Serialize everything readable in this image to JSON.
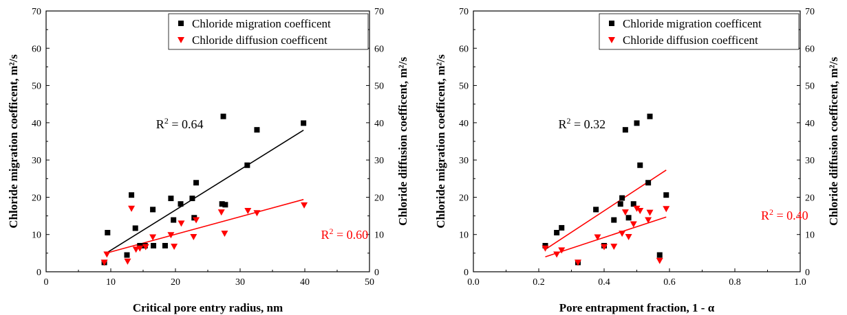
{
  "chart_data": [
    {
      "type": "scatter",
      "xlabel": "Critical pore entry radius, nm",
      "ylabel_left": "Chloride migration coefficent, m²/s",
      "ylabel_right": "Chloride diffusion coefficent, m²/s",
      "xlim": [
        0,
        50
      ],
      "ylim": [
        0,
        70
      ],
      "xticks": [
        "0",
        "10",
        "20",
        "30",
        "40",
        "50"
      ],
      "yticks": [
        "0",
        "10",
        "20",
        "30",
        "40",
        "50",
        "60",
        "70"
      ],
      "legend_position": "top-right",
      "series": [
        {
          "name": "Chloride migration coefficent",
          "marker": "square",
          "color": "#000000",
          "points": [
            [
              9.0,
              2.5
            ],
            [
              9.5,
              10.5
            ],
            [
              12.5,
              4.5
            ],
            [
              13.2,
              20.6
            ],
            [
              13.8,
              11.7
            ],
            [
              14.5,
              7.0
            ],
            [
              15.3,
              7.0
            ],
            [
              16.5,
              16.7
            ],
            [
              16.6,
              7.0
            ],
            [
              18.4,
              7.0
            ],
            [
              19.3,
              19.7
            ],
            [
              19.7,
              13.9
            ],
            [
              20.8,
              18.2
            ],
            [
              22.6,
              19.7
            ],
            [
              22.9,
              14.5
            ],
            [
              23.2,
              23.9
            ],
            [
              27.2,
              18.2
            ],
            [
              27.4,
              41.7
            ],
            [
              27.7,
              18.0
            ],
            [
              31.1,
              28.6
            ],
            [
              32.6,
              38.1
            ],
            [
              39.8,
              39.9
            ]
          ]
        },
        {
          "name": "Chloride diffusion coefficent",
          "marker": "triangle-down",
          "color": "#ff0000",
          "points": [
            [
              9.0,
              2.5
            ],
            [
              9.4,
              4.7
            ],
            [
              12.6,
              2.8
            ],
            [
              13.2,
              17.0
            ],
            [
              13.9,
              6.0
            ],
            [
              14.5,
              6.3
            ],
            [
              15.4,
              6.7
            ],
            [
              16.5,
              9.3
            ],
            [
              19.3,
              9.9
            ],
            [
              19.8,
              6.8
            ],
            [
              20.9,
              13.0
            ],
            [
              22.8,
              9.4
            ],
            [
              23.2,
              13.9
            ],
            [
              27.1,
              16.0
            ],
            [
              27.6,
              10.3
            ],
            [
              31.2,
              16.4
            ],
            [
              32.6,
              15.8
            ],
            [
              39.9,
              17.9
            ]
          ]
        }
      ],
      "trendlines": [
        {
          "series": "Chloride migration coefficent",
          "color": "#000000",
          "x": [
            9.3,
            39.8
          ],
          "y": [
            5.0,
            38.0
          ]
        },
        {
          "series": "Chloride diffusion coefficent",
          "color": "#ff0000",
          "x": [
            9.3,
            39.8
          ],
          "y": [
            5.0,
            19.4
          ]
        }
      ],
      "annotations": [
        {
          "text_base": "R",
          "sup": "2",
          "text_rest": " = 0.64",
          "color": "#000000",
          "x": 17.0,
          "y": 38.5
        },
        {
          "text_base": "R",
          "sup": "2",
          "text_rest": " = 0.60",
          "color": "#ff0000",
          "x": 42.5,
          "y": 8.8
        }
      ]
    },
    {
      "type": "scatter",
      "xlabel": "Pore entrapment fraction, 1 - α",
      "ylabel_left": "Chloride migration coefficent, m²/s",
      "ylabel_right": "Chloride diffusion coefficent, m²/s",
      "xlim": [
        0.0,
        1.0
      ],
      "ylim": [
        0,
        70
      ],
      "xticks": [
        "0.0",
        "0.2",
        "0.4",
        "0.6",
        "0.8",
        "1.0"
      ],
      "yticks": [
        "0",
        "10",
        "20",
        "30",
        "40",
        "50",
        "60",
        "70"
      ],
      "legend_position": "top-right",
      "series": [
        {
          "name": "Chloride migration coefficent",
          "marker": "square",
          "color": "#000000",
          "points": [
            [
              0.22,
              7.0
            ],
            [
              0.255,
              10.5
            ],
            [
              0.27,
              11.8
            ],
            [
              0.32,
              2.5
            ],
            [
              0.375,
              16.7
            ],
            [
              0.4,
              7.0
            ],
            [
              0.43,
              13.9
            ],
            [
              0.45,
              18.2
            ],
            [
              0.455,
              19.8
            ],
            [
              0.465,
              38.1
            ],
            [
              0.475,
              14.5
            ],
            [
              0.49,
              18.2
            ],
            [
              0.5,
              39.9
            ],
            [
              0.51,
              28.6
            ],
            [
              0.535,
              23.9
            ],
            [
              0.54,
              41.7
            ],
            [
              0.57,
              4.5
            ],
            [
              0.59,
              20.6
            ]
          ]
        },
        {
          "name": "Chloride diffusion coefficent",
          "marker": "triangle-down",
          "color": "#ff0000",
          "points": [
            [
              0.22,
              6.3
            ],
            [
              0.255,
              4.7
            ],
            [
              0.27,
              5.8
            ],
            [
              0.32,
              2.5
            ],
            [
              0.38,
              9.3
            ],
            [
              0.4,
              6.7
            ],
            [
              0.43,
              6.8
            ],
            [
              0.455,
              10.3
            ],
            [
              0.465,
              16.0
            ],
            [
              0.475,
              9.4
            ],
            [
              0.49,
              12.8
            ],
            [
              0.5,
              17.0
            ],
            [
              0.51,
              16.4
            ],
            [
              0.535,
              13.9
            ],
            [
              0.54,
              15.9
            ],
            [
              0.57,
              3.0
            ],
            [
              0.59,
              16.9
            ]
          ]
        }
      ],
      "trendlines": [
        {
          "series": "Chloride migration coefficent",
          "color": "#ff0000",
          "x": [
            0.22,
            0.59
          ],
          "y": [
            6.0,
            27.3
          ]
        },
        {
          "series": "Chloride diffusion coefficent",
          "color": "#ff0000",
          "x": [
            0.22,
            0.59
          ],
          "y": [
            4.0,
            14.7
          ]
        }
      ],
      "annotations": [
        {
          "text_base": "R",
          "sup": "2",
          "text_rest": " = 0.32",
          "color": "#000000",
          "x": 0.26,
          "y": 38.5
        },
        {
          "text_base": "R",
          "sup": "2",
          "text_rest": " = 0.40",
          "color": "#ff0000",
          "x": 0.88,
          "y": 14.0
        }
      ]
    }
  ]
}
